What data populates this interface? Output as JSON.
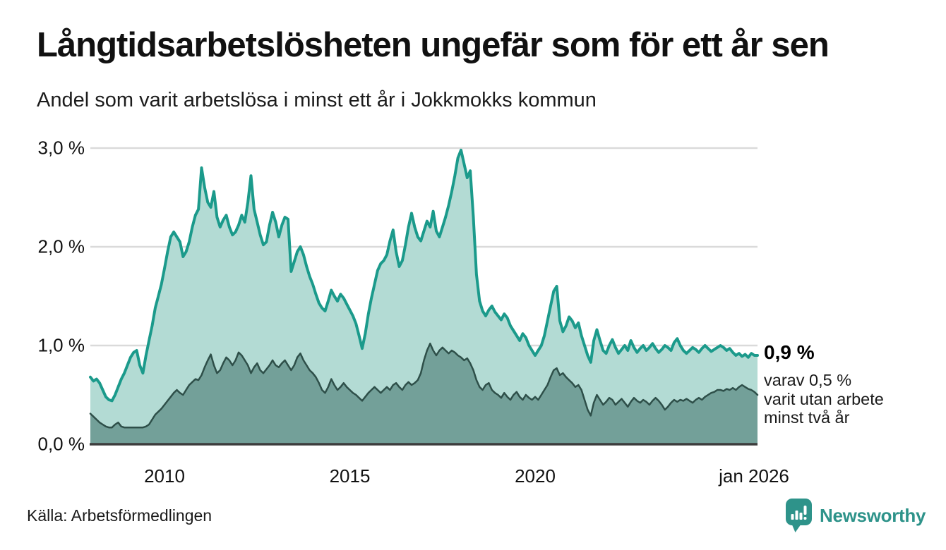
{
  "header": {
    "title": "Långtidsarbetslösheten ungefär som för ett år sen",
    "subtitle": "Andel som varit arbetslösa i minst ett år i Jokkmokks kommun"
  },
  "annotation": {
    "value_label": "0,9 %",
    "lines": [
      "varav 0,5 %",
      "varit utan arbete",
      "minst två år"
    ]
  },
  "footer": {
    "source": "Källa: Arbetsförmedlingen",
    "logo_text": "Newsworthy"
  },
  "colors": {
    "line_1yr": "#1b9a8b",
    "fill_1yr": "#b3dbd4",
    "line_2yr": "#2e4f49",
    "fill_2yr": "#73a099",
    "grid": "#dadada",
    "baseline": "#3d3d3d",
    "logo": "#2e938a",
    "text": "#1a1a1a"
  },
  "chart_data": {
    "type": "area",
    "title": "Långtidsarbetslösheten ungefär som för ett år sen",
    "subtitle": "Andel som varit arbetslösa i minst ett år i Jokkmokks kommun",
    "unit": "%",
    "x_start_year": 2008,
    "x_step_months": 1,
    "ylim": [
      0,
      3
    ],
    "grid": true,
    "yticks": [
      {
        "v": 3,
        "label": "3,0 %"
      },
      {
        "v": 2,
        "label": "2,0 %"
      },
      {
        "v": 1,
        "label": "1,0 %"
      },
      {
        "v": 0,
        "label": "0,0 %"
      }
    ],
    "xticks": [
      {
        "year": 2010,
        "label": "2010"
      },
      {
        "year": 2015,
        "label": "2015"
      },
      {
        "year": 2020,
        "label": "2020"
      },
      {
        "year": 2026,
        "label": "jan 2026"
      }
    ],
    "series": [
      {
        "name": "Andel arbetslösa minst ett år",
        "end_value_label": "0,9 %",
        "color": "#1b9a8b",
        "fill": "#b3dbd4",
        "line_width": 4,
        "values": [
          0.68,
          0.64,
          0.66,
          0.62,
          0.55,
          0.48,
          0.45,
          0.44,
          0.5,
          0.58,
          0.66,
          0.72,
          0.8,
          0.88,
          0.93,
          0.95,
          0.8,
          0.72,
          0.9,
          1.05,
          1.2,
          1.38,
          1.5,
          1.62,
          1.78,
          1.95,
          2.1,
          2.15,
          2.1,
          2.05,
          1.9,
          1.95,
          2.05,
          2.2,
          2.32,
          2.38,
          2.8,
          2.6,
          2.45,
          2.4,
          2.56,
          2.3,
          2.2,
          2.27,
          2.32,
          2.2,
          2.12,
          2.15,
          2.22,
          2.32,
          2.25,
          2.45,
          2.72,
          2.38,
          2.25,
          2.12,
          2.02,
          2.05,
          2.22,
          2.35,
          2.25,
          2.1,
          2.22,
          2.3,
          2.28,
          1.75,
          1.85,
          1.95,
          2.0,
          1.92,
          1.8,
          1.7,
          1.62,
          1.52,
          1.43,
          1.38,
          1.35,
          1.45,
          1.56,
          1.5,
          1.45,
          1.52,
          1.48,
          1.42,
          1.36,
          1.3,
          1.22,
          1.1,
          0.97,
          1.12,
          1.32,
          1.48,
          1.62,
          1.76,
          1.83,
          1.86,
          1.92,
          2.06,
          2.17,
          1.95,
          1.8,
          1.86,
          2.02,
          2.2,
          2.34,
          2.2,
          2.1,
          2.06,
          2.16,
          2.26,
          2.2,
          2.36,
          2.16,
          2.1,
          2.2,
          2.3,
          2.42,
          2.56,
          2.72,
          2.9,
          2.98,
          2.84,
          2.7,
          2.77,
          2.3,
          1.72,
          1.45,
          1.35,
          1.3,
          1.36,
          1.4,
          1.34,
          1.3,
          1.26,
          1.32,
          1.28,
          1.2,
          1.15,
          1.1,
          1.05,
          1.12,
          1.08,
          1.0,
          0.95,
          0.9,
          0.95,
          1.0,
          1.1,
          1.25,
          1.4,
          1.55,
          1.6,
          1.25,
          1.14,
          1.2,
          1.29,
          1.25,
          1.18,
          1.23,
          1.1,
          1.0,
          0.9,
          0.83,
          1.05,
          1.16,
          1.05,
          0.95,
          0.92,
          1.0,
          1.06,
          0.98,
          0.92,
          0.96,
          1.0,
          0.95,
          1.05,
          0.98,
          0.93,
          0.97,
          1.0,
          0.95,
          0.98,
          1.02,
          0.97,
          0.93,
          0.96,
          1.0,
          0.98,
          0.95,
          1.03,
          1.07,
          1.0,
          0.95,
          0.92,
          0.95,
          0.98,
          0.96,
          0.93,
          0.97,
          1.0,
          0.97,
          0.94,
          0.96,
          0.98,
          1.0,
          0.98,
          0.95,
          0.97,
          0.93,
          0.9,
          0.92,
          0.89,
          0.91,
          0.88,
          0.92,
          0.9,
          0.9
        ]
      },
      {
        "name": "Andel utan arbete minst två år",
        "end_value_label": "0,5 %",
        "color": "#2e4f49",
        "fill": "#73a099",
        "line_width": 2.5,
        "values": [
          0.31,
          0.28,
          0.25,
          0.22,
          0.2,
          0.18,
          0.17,
          0.17,
          0.2,
          0.22,
          0.18,
          0.17,
          0.17,
          0.17,
          0.17,
          0.17,
          0.17,
          0.17,
          0.18,
          0.2,
          0.25,
          0.3,
          0.33,
          0.36,
          0.4,
          0.44,
          0.48,
          0.52,
          0.55,
          0.52,
          0.5,
          0.55,
          0.6,
          0.63,
          0.66,
          0.65,
          0.7,
          0.78,
          0.85,
          0.91,
          0.8,
          0.72,
          0.75,
          0.82,
          0.88,
          0.85,
          0.8,
          0.85,
          0.93,
          0.9,
          0.85,
          0.8,
          0.72,
          0.78,
          0.82,
          0.75,
          0.72,
          0.76,
          0.8,
          0.85,
          0.8,
          0.78,
          0.82,
          0.85,
          0.8,
          0.75,
          0.8,
          0.88,
          0.92,
          0.85,
          0.8,
          0.75,
          0.72,
          0.68,
          0.62,
          0.55,
          0.52,
          0.58,
          0.66,
          0.6,
          0.55,
          0.58,
          0.62,
          0.58,
          0.55,
          0.52,
          0.5,
          0.47,
          0.44,
          0.48,
          0.52,
          0.55,
          0.58,
          0.55,
          0.52,
          0.55,
          0.58,
          0.55,
          0.6,
          0.62,
          0.58,
          0.55,
          0.6,
          0.63,
          0.6,
          0.62,
          0.65,
          0.72,
          0.85,
          0.95,
          1.02,
          0.95,
          0.9,
          0.95,
          0.98,
          0.95,
          0.92,
          0.95,
          0.93,
          0.9,
          0.88,
          0.85,
          0.87,
          0.82,
          0.75,
          0.65,
          0.58,
          0.55,
          0.6,
          0.62,
          0.55,
          0.52,
          0.5,
          0.47,
          0.52,
          0.48,
          0.45,
          0.5,
          0.53,
          0.48,
          0.45,
          0.5,
          0.47,
          0.45,
          0.48,
          0.45,
          0.5,
          0.55,
          0.6,
          0.68,
          0.75,
          0.77,
          0.7,
          0.72,
          0.68,
          0.65,
          0.62,
          0.58,
          0.6,
          0.55,
          0.45,
          0.35,
          0.29,
          0.42,
          0.5,
          0.45,
          0.4,
          0.43,
          0.47,
          0.45,
          0.4,
          0.43,
          0.46,
          0.42,
          0.38,
          0.43,
          0.47,
          0.44,
          0.42,
          0.45,
          0.43,
          0.4,
          0.44,
          0.47,
          0.44,
          0.4,
          0.35,
          0.38,
          0.42,
          0.45,
          0.43,
          0.45,
          0.44,
          0.46,
          0.44,
          0.42,
          0.45,
          0.47,
          0.45,
          0.48,
          0.5,
          0.52,
          0.53,
          0.55,
          0.55,
          0.54,
          0.56,
          0.55,
          0.57,
          0.55,
          0.58,
          0.6,
          0.58,
          0.56,
          0.55,
          0.53,
          0.5
        ]
      }
    ]
  }
}
